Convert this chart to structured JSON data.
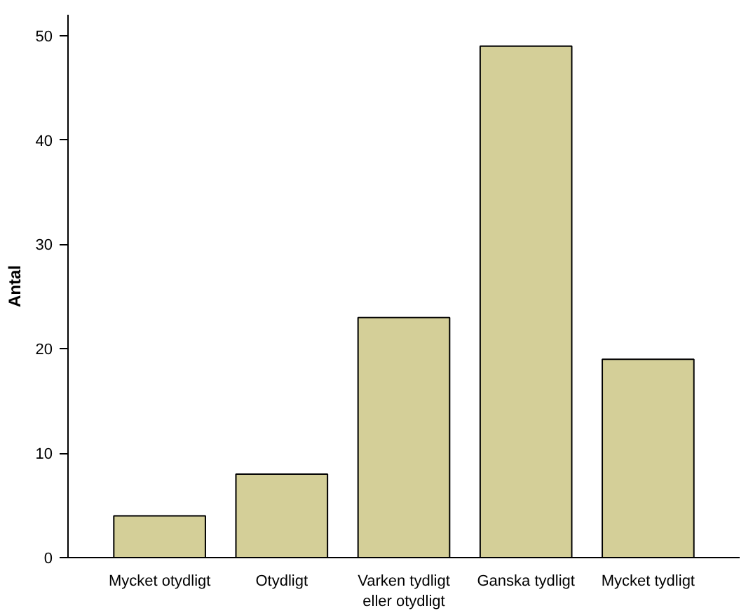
{
  "chart_data": {
    "type": "bar",
    "ylabel": "Antal",
    "categories": [
      "Mycket otydligt",
      "Otydligt",
      "Varken tydligt eller otydligt",
      "Ganska tydligt",
      "Mycket tydligt"
    ],
    "values": [
      4,
      8,
      23,
      49,
      19
    ],
    "color": "#d4cf98",
    "ylim": [
      0,
      52
    ],
    "yticks": [
      0,
      10,
      20,
      30,
      40,
      50
    ],
    "grid": false
  }
}
